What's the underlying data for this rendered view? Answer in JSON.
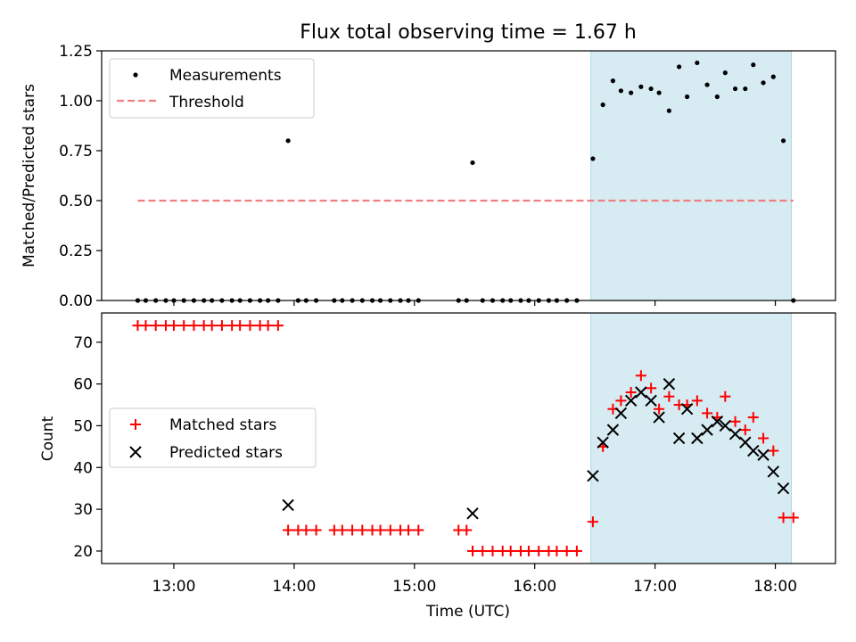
{
  "chart_data": [
    {
      "type": "scatter",
      "title": "Flux total observing time = 1.67 h",
      "xlabel": "",
      "ylabel": "Matched/Predicted stars",
      "xlim": [
        "12:24",
        "18:30"
      ],
      "ylim": [
        0,
        1.25
      ],
      "yticks": [
        "0.00",
        "0.25",
        "0.50",
        "0.75",
        "1.00",
        "1.25"
      ],
      "xticks": [
        "13:00",
        "14:00",
        "15:00",
        "16:00",
        "17:00",
        "18:00"
      ],
      "legend_position": "upper-left",
      "shaded_span": [
        "16:28",
        "18:08"
      ],
      "shade_color": "#add8e6",
      "series": [
        {
          "name": "Measurements",
          "marker": "dot",
          "color": "#000000",
          "points": [
            [
              "12:42",
              0
            ],
            [
              "12:46",
              0
            ],
            [
              "12:51",
              0
            ],
            [
              "12:56",
              0
            ],
            [
              "13:00",
              0
            ],
            [
              "13:05",
              0
            ],
            [
              "13:10",
              0
            ],
            [
              "13:15",
              0
            ],
            [
              "13:19",
              0
            ],
            [
              "13:24",
              0
            ],
            [
              "13:29",
              0
            ],
            [
              "13:33",
              0
            ],
            [
              "13:38",
              0
            ],
            [
              "13:43",
              0
            ],
            [
              "13:47",
              0
            ],
            [
              "13:52",
              0
            ],
            [
              "13:57",
              0.8
            ],
            [
              "14:02",
              0
            ],
            [
              "14:06",
              0
            ],
            [
              "14:11",
              0
            ],
            [
              "14:20",
              0
            ],
            [
              "14:24",
              0
            ],
            [
              "14:29",
              0
            ],
            [
              "14:34",
              0
            ],
            [
              "14:39",
              0
            ],
            [
              "14:43",
              0
            ],
            [
              "14:48",
              0
            ],
            [
              "14:53",
              0
            ],
            [
              "14:57",
              0
            ],
            [
              "15:02",
              0
            ],
            [
              "15:22",
              0
            ],
            [
              "15:26",
              0
            ],
            [
              "15:29",
              0.69
            ],
            [
              "15:34",
              0
            ],
            [
              "15:39",
              0
            ],
            [
              "15:44",
              0
            ],
            [
              "15:48",
              0
            ],
            [
              "15:53",
              0
            ],
            [
              "15:57",
              0
            ],
            [
              "16:02",
              0
            ],
            [
              "16:07",
              0
            ],
            [
              "16:11",
              0
            ],
            [
              "16:16",
              0
            ],
            [
              "16:21",
              0
            ],
            [
              "16:29",
              0.71
            ],
            [
              "16:34",
              0.98
            ],
            [
              "16:39",
              1.1
            ],
            [
              "16:43",
              1.05
            ],
            [
              "16:48",
              1.04
            ],
            [
              "16:53",
              1.07
            ],
            [
              "16:58",
              1.06
            ],
            [
              "17:02",
              1.04
            ],
            [
              "17:07",
              0.95
            ],
            [
              "17:12",
              1.17
            ],
            [
              "17:16",
              1.02
            ],
            [
              "17:21",
              1.19
            ],
            [
              "17:26",
              1.08
            ],
            [
              "17:31",
              1.02
            ],
            [
              "17:35",
              1.14
            ],
            [
              "17:40",
              1.06
            ],
            [
              "17:45",
              1.06
            ],
            [
              "17:49",
              1.18
            ],
            [
              "17:54",
              1.09
            ],
            [
              "17:59",
              1.12
            ],
            [
              "18:04",
              0.8
            ],
            [
              "18:09",
              0
            ]
          ]
        },
        {
          "name": "Threshold",
          "marker": "dashed-line",
          "color": "#f08080",
          "points": [
            [
              "12:42",
              0.5
            ],
            [
              "18:09",
              0.5
            ]
          ]
        }
      ]
    },
    {
      "type": "scatter",
      "title": "",
      "xlabel": "Time (UTC)",
      "ylabel": "Count",
      "xlim": [
        "12:24",
        "18:30"
      ],
      "ylim": [
        17,
        77
      ],
      "yticks": [
        "20",
        "30",
        "40",
        "50",
        "60",
        "70"
      ],
      "xticks": [
        "13:00",
        "14:00",
        "15:00",
        "16:00",
        "17:00",
        "18:00"
      ],
      "legend_position": "center-left",
      "shaded_span": [
        "16:28",
        "18:08"
      ],
      "shade_color": "#add8e6",
      "series": [
        {
          "name": "Matched stars",
          "marker": "plus",
          "color": "#ff0000",
          "points": [
            [
              "12:42",
              74
            ],
            [
              "12:46",
              74
            ],
            [
              "12:51",
              74
            ],
            [
              "12:56",
              74
            ],
            [
              "13:00",
              74
            ],
            [
              "13:05",
              74
            ],
            [
              "13:10",
              74
            ],
            [
              "13:15",
              74
            ],
            [
              "13:19",
              74
            ],
            [
              "13:24",
              74
            ],
            [
              "13:29",
              74
            ],
            [
              "13:33",
              74
            ],
            [
              "13:38",
              74
            ],
            [
              "13:43",
              74
            ],
            [
              "13:47",
              74
            ],
            [
              "13:52",
              74
            ],
            [
              "13:57",
              25
            ],
            [
              "14:02",
              25
            ],
            [
              "14:06",
              25
            ],
            [
              "14:11",
              25
            ],
            [
              "14:20",
              25
            ],
            [
              "14:24",
              25
            ],
            [
              "14:29",
              25
            ],
            [
              "14:34",
              25
            ],
            [
              "14:39",
              25
            ],
            [
              "14:43",
              25
            ],
            [
              "14:48",
              25
            ],
            [
              "14:53",
              25
            ],
            [
              "14:57",
              25
            ],
            [
              "15:02",
              25
            ],
            [
              "15:22",
              25
            ],
            [
              "15:26",
              25
            ],
            [
              "15:29",
              20
            ],
            [
              "15:34",
              20
            ],
            [
              "15:39",
              20
            ],
            [
              "15:44",
              20
            ],
            [
              "15:48",
              20
            ],
            [
              "15:53",
              20
            ],
            [
              "15:57",
              20
            ],
            [
              "16:02",
              20
            ],
            [
              "16:07",
              20
            ],
            [
              "16:11",
              20
            ],
            [
              "16:16",
              20
            ],
            [
              "16:21",
              20
            ],
            [
              "16:29",
              27
            ],
            [
              "16:34",
              45
            ],
            [
              "16:39",
              54
            ],
            [
              "16:43",
              56
            ],
            [
              "16:48",
              58
            ],
            [
              "16:53",
              62
            ],
            [
              "16:58",
              59
            ],
            [
              "17:02",
              54
            ],
            [
              "17:07",
              57
            ],
            [
              "17:12",
              55
            ],
            [
              "17:16",
              55
            ],
            [
              "17:21",
              56
            ],
            [
              "17:26",
              53
            ],
            [
              "17:31",
              52
            ],
            [
              "17:35",
              57
            ],
            [
              "17:40",
              51
            ],
            [
              "17:45",
              49
            ],
            [
              "17:49",
              52
            ],
            [
              "17:54",
              47
            ],
            [
              "17:59",
              44
            ],
            [
              "18:04",
              28
            ],
            [
              "18:09",
              28
            ]
          ]
        },
        {
          "name": "Predicted stars",
          "marker": "x",
          "color": "#000000",
          "points": [
            [
              "13:57",
              31
            ],
            [
              "15:29",
              29
            ],
            [
              "16:29",
              38
            ],
            [
              "16:34",
              46
            ],
            [
              "16:39",
              49
            ],
            [
              "16:43",
              53
            ],
            [
              "16:48",
              56
            ],
            [
              "16:53",
              58
            ],
            [
              "16:58",
              56
            ],
            [
              "17:02",
              52
            ],
            [
              "17:07",
              60
            ],
            [
              "17:12",
              47
            ],
            [
              "17:16",
              54
            ],
            [
              "17:21",
              47
            ],
            [
              "17:26",
              49
            ],
            [
              "17:31",
              51
            ],
            [
              "17:35",
              50
            ],
            [
              "17:40",
              48
            ],
            [
              "17:45",
              46
            ],
            [
              "17:49",
              44
            ],
            [
              "17:54",
              43
            ],
            [
              "17:59",
              39
            ],
            [
              "18:04",
              35
            ]
          ]
        }
      ]
    }
  ]
}
